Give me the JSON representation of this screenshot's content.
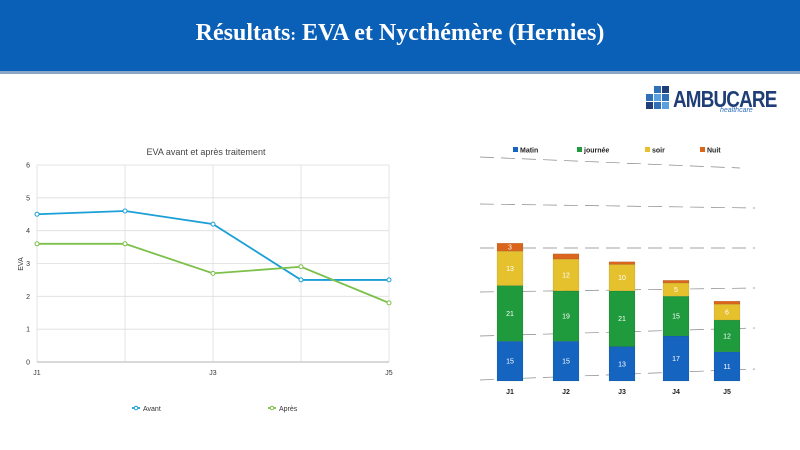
{
  "header": {
    "title_main": "Résultats",
    "title_colon": ":",
    "title_rest": " EVA et Nycthémère (Hernies)"
  },
  "logo": {
    "brand": "AMBUCARE",
    "sub": "healthcare"
  },
  "chart_data": [
    {
      "type": "line",
      "title": "EVA avant et après traitement",
      "xlabel": "",
      "ylabel": "EVA",
      "categories": [
        "J1",
        "J2",
        "J3",
        "J4",
        "J5"
      ],
      "x_tick_labels": [
        "J1",
        "",
        "J3",
        "",
        "J5"
      ],
      "ylim": [
        0,
        6
      ],
      "yticks": [
        0,
        1,
        2,
        3,
        4,
        5,
        6
      ],
      "grid": true,
      "legend": "bottom",
      "series": [
        {
          "name": "Avant",
          "color": "#1a9fd6",
          "values": [
            4.5,
            4.6,
            4.2,
            2.5,
            2.5
          ]
        },
        {
          "name": "Après",
          "color": "#7cc04a",
          "values": [
            3.6,
            3.6,
            2.7,
            2.9,
            1.8
          ]
        }
      ]
    },
    {
      "type": "bar",
      "stacked": true,
      "categories": [
        "J1",
        "J2",
        "J3",
        "J4",
        "J5"
      ],
      "legend": "top",
      "series": [
        {
          "name": "Matin",
          "color": "#1565c0",
          "values": [
            15,
            15,
            13,
            17,
            11
          ]
        },
        {
          "name": "journée",
          "color": "#1f9a3c",
          "values": [
            21,
            19,
            21,
            15,
            12
          ]
        },
        {
          "name": "soir",
          "color": "#e6c12e",
          "values": [
            13,
            12,
            10,
            5,
            6
          ]
        },
        {
          "name": "Nuit",
          "color": "#d9661c",
          "values": [
            3,
            2,
            1,
            1,
            0
          ]
        }
      ]
    }
  ]
}
